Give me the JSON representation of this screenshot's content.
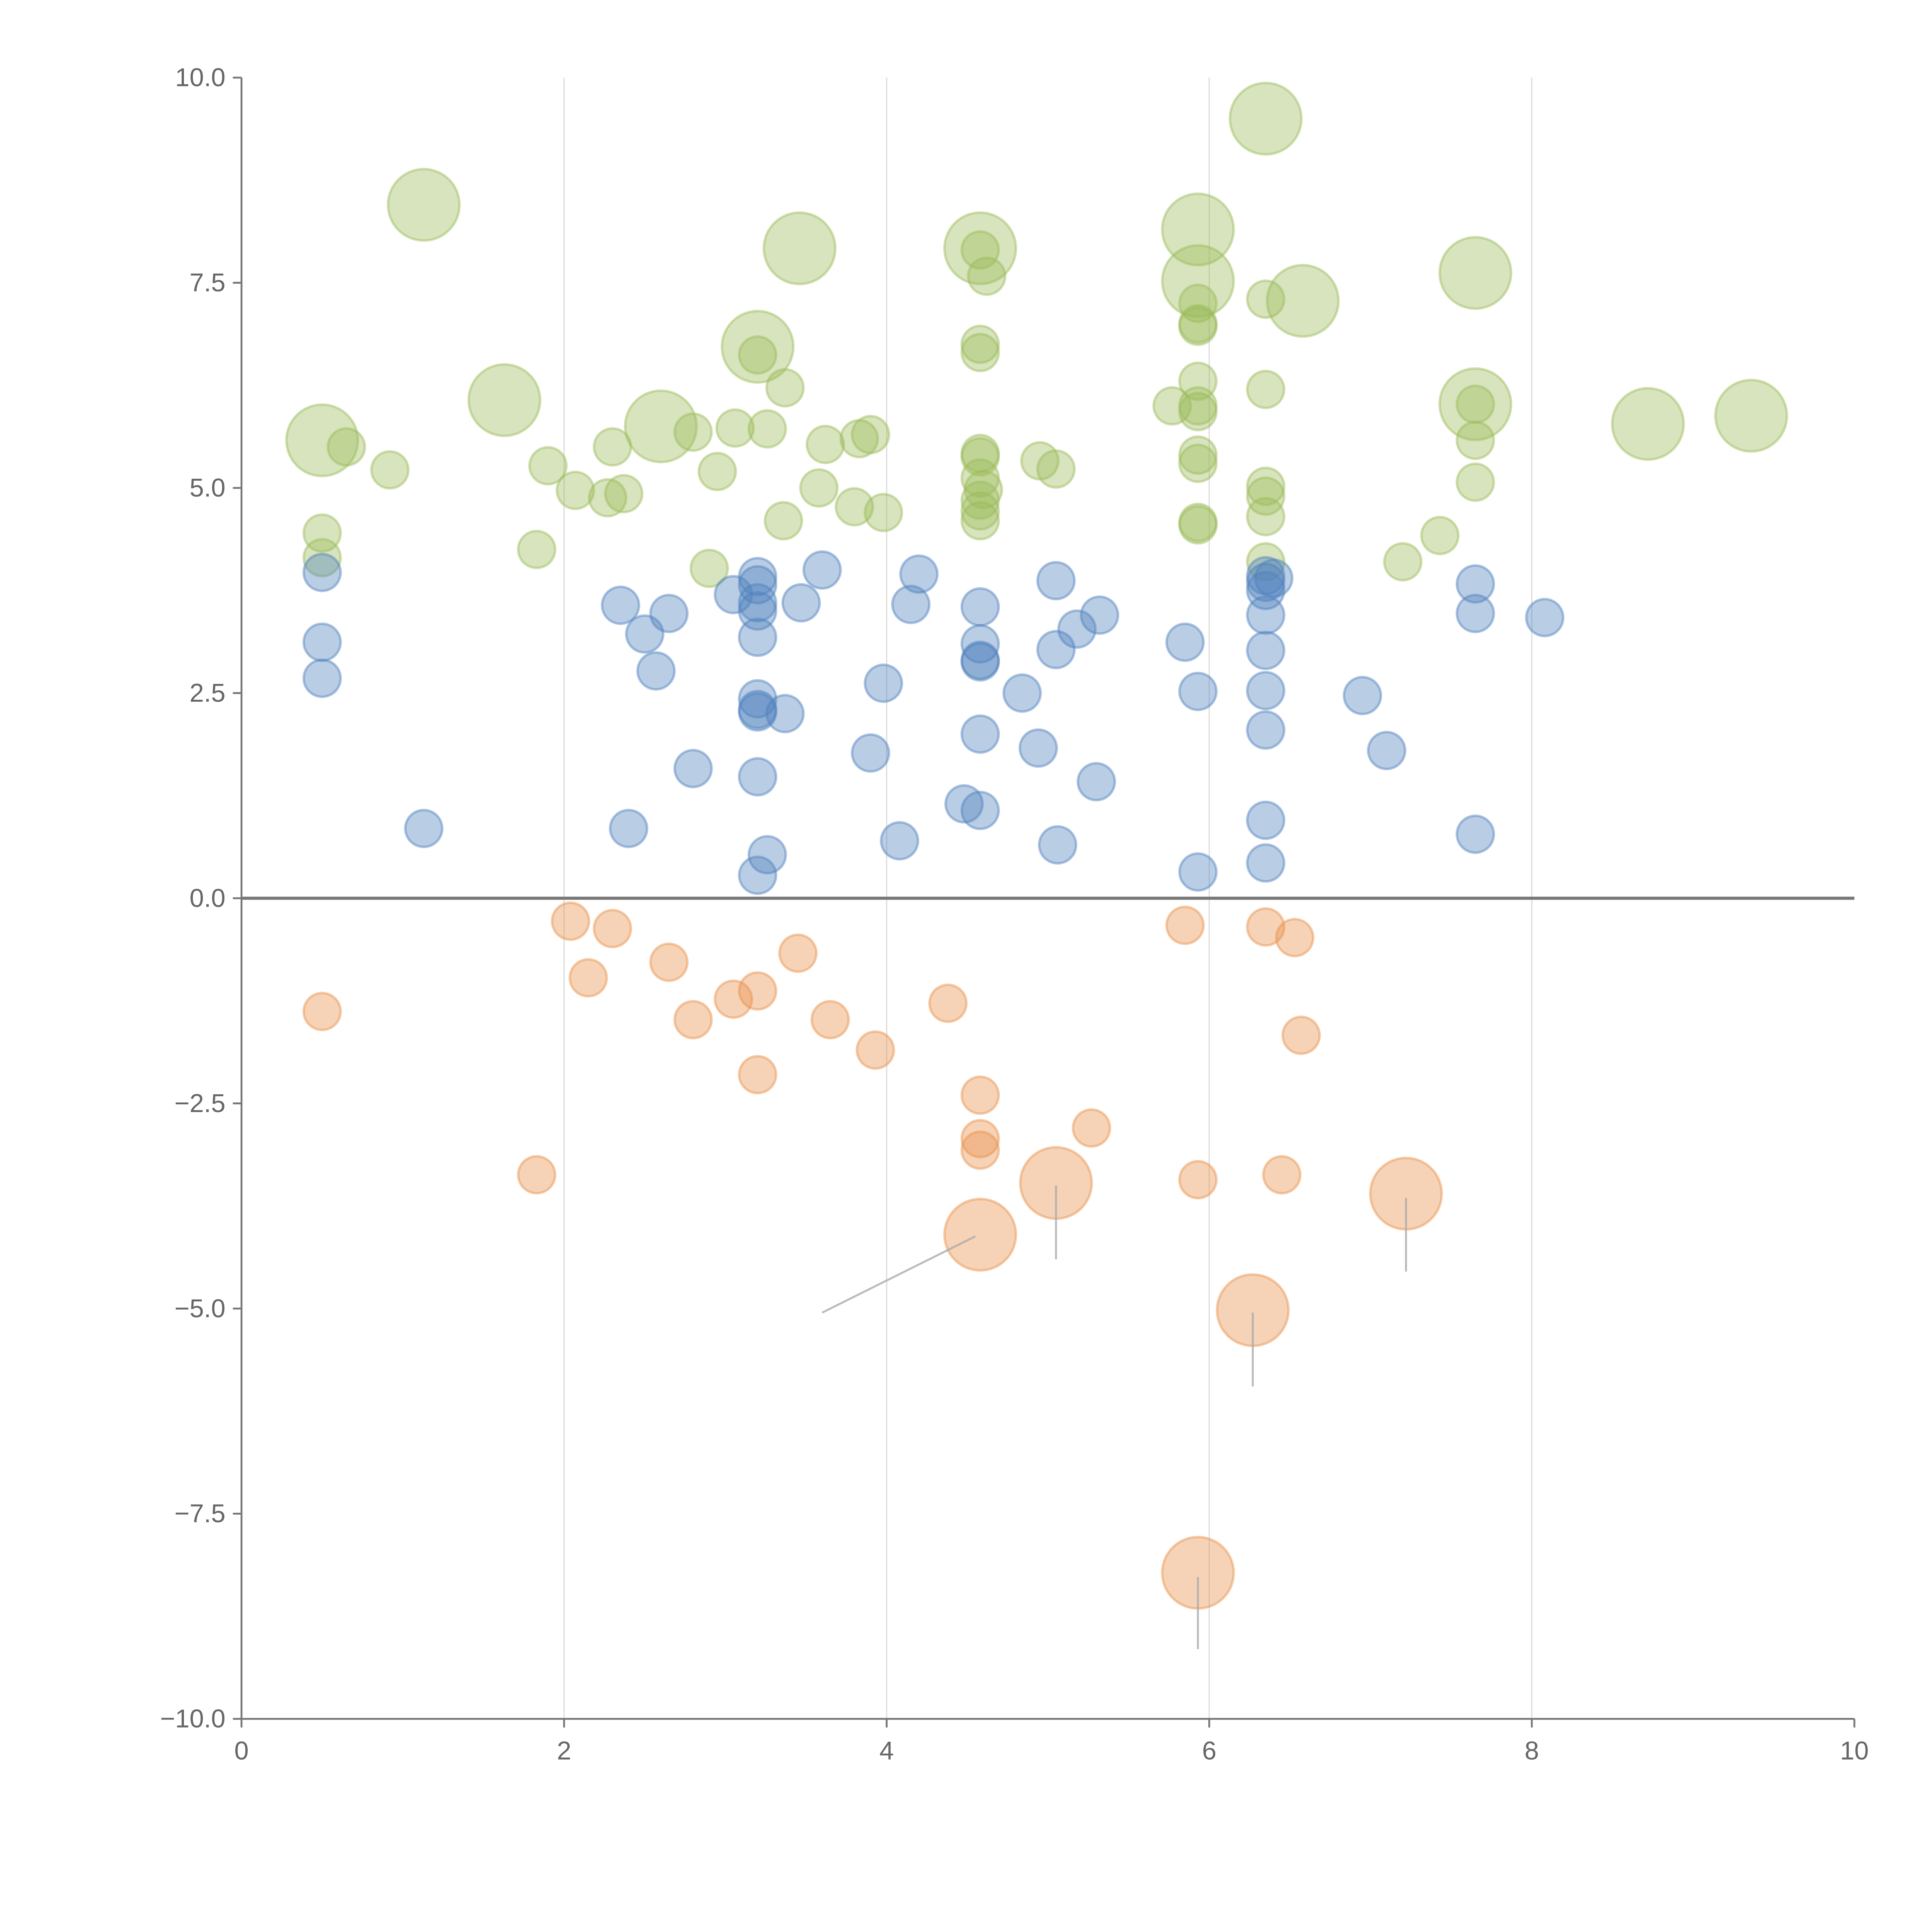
{
  "chart_data": {
    "type": "scatter",
    "title": "",
    "xlabel": "",
    "ylabel": "",
    "xlim": [
      0,
      10
    ],
    "ylim": [
      -10,
      10
    ],
    "grid": "vertical lines at x ticks",
    "legend": "none",
    "x_ticks": [
      "0",
      "2",
      "4",
      "6",
      "8",
      "10"
    ],
    "y_ticks": [
      "10.0",
      "7.5",
      "5.0",
      "2.5",
      "0.0",
      "−2.5",
      "−5.0",
      "−7.5",
      "−10.0"
    ],
    "colors": {
      "green": "#9bbb59",
      "blue": "#4f81bd",
      "orange": "#e8914a",
      "axis": "#666666",
      "grid": "#dddddd",
      "leader": "#aaaaaa"
    },
    "series": [
      {
        "name": "green",
        "color": "#9bbb59",
        "points": [
          [
            1.13,
            8.45,
            2
          ],
          [
            3.46,
            7.92,
            2
          ],
          [
            4.58,
            7.92,
            2
          ],
          [
            5.93,
            8.15,
            2
          ],
          [
            5.93,
            7.52,
            2
          ],
          [
            6.35,
            9.5,
            2
          ],
          [
            6.58,
            7.28,
            2
          ],
          [
            7.65,
            7.62,
            2
          ],
          [
            3.2,
            6.72,
            2
          ],
          [
            1.63,
            6.07,
            2
          ],
          [
            2.6,
            5.75,
            2
          ],
          [
            0.5,
            5.58,
            2
          ],
          [
            7.65,
            6.02,
            2
          ],
          [
            8.72,
            5.78,
            2
          ],
          [
            9.36,
            5.88,
            2
          ],
          [
            0.65,
            5.5,
            1
          ],
          [
            0.92,
            5.22,
            1
          ],
          [
            0.5,
            4.45,
            1
          ],
          [
            0.5,
            4.15,
            1
          ],
          [
            1.83,
            4.25,
            1
          ],
          [
            1.9,
            5.27,
            1
          ],
          [
            2.07,
            4.97,
            1
          ],
          [
            2.27,
            4.88,
            1
          ],
          [
            2.3,
            5.5,
            1
          ],
          [
            2.37,
            4.93,
            1
          ],
          [
            2.8,
            5.68,
            1
          ],
          [
            2.95,
            5.2,
            1
          ],
          [
            3.06,
            5.73,
            1
          ],
          [
            3.2,
            6.62,
            1
          ],
          [
            3.26,
            5.72,
            1
          ],
          [
            3.36,
            4.6,
            1
          ],
          [
            3.37,
            6.22,
            1
          ],
          [
            3.62,
            5.53,
            1
          ],
          [
            3.58,
            5.0,
            1
          ],
          [
            3.8,
            4.77,
            1
          ],
          [
            3.83,
            5.6,
            1
          ],
          [
            3.9,
            5.65,
            1
          ],
          [
            3.98,
            4.7,
            1
          ],
          [
            2.9,
            4.02,
            1
          ],
          [
            4.58,
            6.75,
            1
          ],
          [
            4.58,
            6.65,
            1
          ],
          [
            4.62,
            7.58,
            1
          ],
          [
            4.58,
            7.9,
            1
          ],
          [
            4.58,
            5.42,
            1
          ],
          [
            4.58,
            5.38,
            1
          ],
          [
            4.58,
            5.12,
            1
          ],
          [
            4.6,
            4.98,
            1
          ],
          [
            4.58,
            4.85,
            1
          ],
          [
            4.58,
            4.72,
            1
          ],
          [
            4.58,
            4.6,
            1
          ],
          [
            4.95,
            5.33,
            1
          ],
          [
            5.05,
            5.23,
            1
          ],
          [
            5.77,
            6.0,
            1
          ],
          [
            5.93,
            6.3,
            1
          ],
          [
            5.93,
            6.0,
            1
          ],
          [
            5.93,
            5.93,
            1
          ],
          [
            5.93,
            7.25,
            1
          ],
          [
            5.93,
            7.0,
            1
          ],
          [
            5.93,
            6.97,
            1
          ],
          [
            5.93,
            5.4,
            1
          ],
          [
            5.93,
            5.3,
            1
          ],
          [
            5.93,
            4.58,
            1
          ],
          [
            5.93,
            4.55,
            1
          ],
          [
            6.35,
            7.3,
            1
          ],
          [
            6.35,
            6.2,
            1
          ],
          [
            6.35,
            5.02,
            1
          ],
          [
            6.35,
            4.9,
            1
          ],
          [
            6.35,
            4.65,
            1
          ],
          [
            6.35,
            4.1,
            1
          ],
          [
            7.2,
            4.1,
            1
          ],
          [
            7.43,
            4.42,
            1
          ],
          [
            7.65,
            6.02,
            1
          ],
          [
            7.65,
            5.58,
            1
          ],
          [
            7.65,
            5.07,
            1
          ]
        ]
      },
      {
        "name": "blue",
        "color": "#4f81bd",
        "points": [
          [
            0.5,
            3.97,
            1
          ],
          [
            0.5,
            3.12,
            1
          ],
          [
            0.5,
            2.68,
            1
          ],
          [
            1.13,
            0.85,
            1
          ],
          [
            2.35,
            3.57,
            1
          ],
          [
            2.4,
            0.85,
            1
          ],
          [
            2.5,
            3.22,
            1
          ],
          [
            2.57,
            2.77,
            1
          ],
          [
            2.65,
            3.47,
            1
          ],
          [
            2.8,
            1.58,
            1
          ],
          [
            3.05,
            3.7,
            1
          ],
          [
            3.2,
            3.92,
            1
          ],
          [
            3.2,
            3.82,
            1
          ],
          [
            3.2,
            3.6,
            1
          ],
          [
            3.2,
            3.5,
            1
          ],
          [
            3.2,
            3.18,
            1
          ],
          [
            3.2,
            2.43,
            1
          ],
          [
            3.2,
            2.3,
            1
          ],
          [
            3.2,
            2.27,
            1
          ],
          [
            3.2,
            1.48,
            1
          ],
          [
            3.2,
            0.28,
            1
          ],
          [
            3.26,
            0.53,
            1
          ],
          [
            3.37,
            2.25,
            1
          ],
          [
            3.47,
            3.6,
            1
          ],
          [
            3.6,
            4.0,
            1
          ],
          [
            3.9,
            1.77,
            1
          ],
          [
            3.98,
            2.62,
            1
          ],
          [
            4.08,
            0.7,
            1
          ],
          [
            4.15,
            3.58,
            1
          ],
          [
            4.2,
            3.95,
            1
          ],
          [
            4.48,
            1.15,
            1
          ],
          [
            4.58,
            1.07,
            1
          ],
          [
            4.58,
            2.0,
            1
          ],
          [
            4.58,
            2.9,
            1
          ],
          [
            4.58,
            2.88,
            1
          ],
          [
            4.58,
            3.1,
            1
          ],
          [
            4.58,
            3.55,
            1
          ],
          [
            4.84,
            2.5,
            1
          ],
          [
            4.94,
            1.83,
            1
          ],
          [
            5.05,
            3.87,
            1
          ],
          [
            5.05,
            3.03,
            1
          ],
          [
            5.06,
            0.65,
            1
          ],
          [
            5.18,
            3.28,
            1
          ],
          [
            5.3,
            1.42,
            1
          ],
          [
            5.32,
            3.45,
            1
          ],
          [
            5.85,
            3.12,
            1
          ],
          [
            5.93,
            2.52,
            1
          ],
          [
            5.93,
            0.32,
            1
          ],
          [
            6.35,
            3.93,
            1
          ],
          [
            6.35,
            3.85,
            1
          ],
          [
            6.35,
            3.75,
            1
          ],
          [
            6.4,
            3.9,
            1
          ],
          [
            6.35,
            3.45,
            1
          ],
          [
            6.35,
            3.02,
            1
          ],
          [
            6.35,
            2.53,
            1
          ],
          [
            6.35,
            2.05,
            1
          ],
          [
            6.35,
            0.95,
            1
          ],
          [
            6.35,
            0.43,
            1
          ],
          [
            6.95,
            2.47,
            1
          ],
          [
            7.1,
            1.8,
            1
          ],
          [
            7.65,
            3.83,
            1
          ],
          [
            7.65,
            3.47,
            1
          ],
          [
            7.65,
            0.78,
            1
          ],
          [
            8.08,
            3.42,
            1
          ]
        ]
      },
      {
        "name": "orange",
        "color": "#e8914a",
        "points": [
          [
            0.5,
            -1.38,
            1
          ],
          [
            1.83,
            -3.37,
            1
          ],
          [
            2.04,
            -0.28,
            1
          ],
          [
            2.15,
            -0.97,
            1
          ],
          [
            2.3,
            -0.37,
            1
          ],
          [
            2.65,
            -0.78,
            1
          ],
          [
            2.8,
            -1.48,
            1
          ],
          [
            3.05,
            -1.23,
            1
          ],
          [
            3.2,
            -1.13,
            1
          ],
          [
            3.2,
            -2.15,
            1
          ],
          [
            3.45,
            -0.67,
            1
          ],
          [
            3.65,
            -1.48,
            1
          ],
          [
            3.93,
            -1.85,
            1
          ],
          [
            4.38,
            -1.28,
            1
          ],
          [
            4.58,
            -2.4,
            1
          ],
          [
            4.58,
            -2.93,
            1
          ],
          [
            4.58,
            -3.07,
            1
          ],
          [
            5.27,
            -2.8,
            1
          ],
          [
            5.85,
            -0.33,
            1
          ],
          [
            5.93,
            -3.43,
            1
          ],
          [
            6.35,
            -0.35,
            1
          ],
          [
            6.45,
            -3.37,
            1
          ],
          [
            6.53,
            -0.48,
            1
          ],
          [
            6.57,
            -1.67,
            1
          ],
          [
            4.58,
            -4.1,
            2
          ],
          [
            5.05,
            -3.47,
            2
          ],
          [
            6.27,
            -5.02,
            2
          ],
          [
            7.22,
            -3.6,
            2
          ],
          [
            5.93,
            -8.22,
            2
          ]
        ]
      }
    ],
    "leaders": [
      [
        4.55,
        -4.12,
        3.6,
        -5.05
      ],
      [
        5.05,
        -3.5,
        5.05,
        -4.4
      ],
      [
        6.27,
        -5.05,
        6.27,
        -5.95
      ],
      [
        7.22,
        -3.65,
        7.22,
        -4.55
      ],
      [
        5.93,
        -8.27,
        5.93,
        -9.15
      ]
    ]
  }
}
